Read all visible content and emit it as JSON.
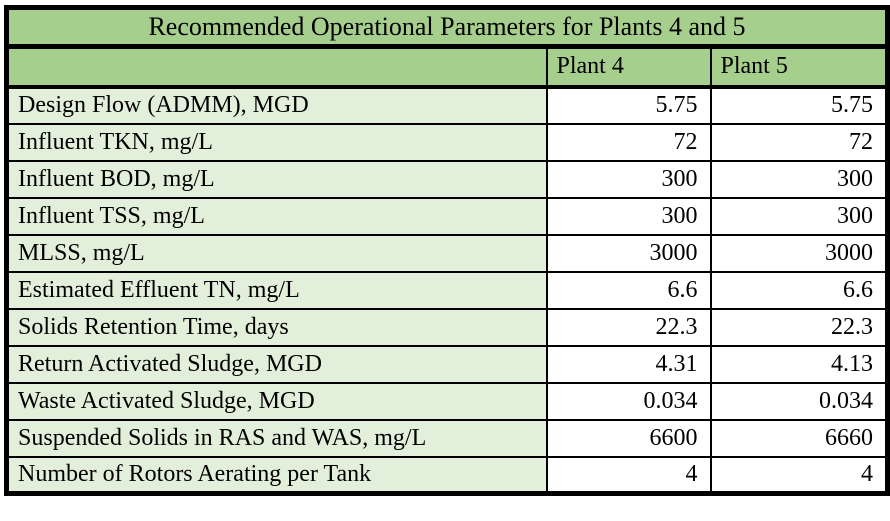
{
  "table": {
    "title": "Recommended Operational Parameters for Plants 4 and 5",
    "columns": [
      "Plant 4",
      "Plant 5"
    ],
    "rows": [
      {
        "label": "Design Flow (ADMM), MGD",
        "plant4": "5.75",
        "plant5": "5.75"
      },
      {
        "label": "Influent TKN, mg/L",
        "plant4": "72",
        "plant5": "72"
      },
      {
        "label": "Influent BOD, mg/L",
        "plant4": "300",
        "plant5": "300"
      },
      {
        "label": "Influent TSS, mg/L",
        "plant4": "300",
        "plant5": "300"
      },
      {
        "label": "MLSS, mg/L",
        "plant4": "3000",
        "plant5": "3000"
      },
      {
        "label": "Estimated Effluent TN, mg/L",
        "plant4": "6.6",
        "plant5": "6.6"
      },
      {
        "label": "Solids Retention Time, days",
        "plant4": "22.3",
        "plant5": "22.3"
      },
      {
        "label": "Return Activated Sludge, MGD",
        "plant4": "4.31",
        "plant5": "4.13"
      },
      {
        "label": "Waste Activated Sludge, MGD",
        "plant4": "0.034",
        "plant5": "0.034"
      },
      {
        "label": "Suspended Solids in RAS and WAS, mg/L",
        "plant4": "6600",
        "plant5": "6660"
      },
      {
        "label": "Number of Rotors Aerating per Tank",
        "plant4": "4",
        "plant5": "4"
      }
    ]
  },
  "colors": {
    "header_green": "#a6ce8c",
    "label_green": "#e2efda",
    "value_cell": "#ffffff",
    "border": "#000000"
  },
  "chart_data": {
    "type": "table",
    "title": "Recommended Operational Parameters for Plants 4 and 5",
    "categories": [
      "Design Flow (ADMM), MGD",
      "Influent TKN, mg/L",
      "Influent BOD, mg/L",
      "Influent TSS, mg/L",
      "MLSS, mg/L",
      "Estimated Effluent TN, mg/L",
      "Solids Retention Time, days",
      "Return Activated Sludge, MGD",
      "Waste Activated Sludge, MGD",
      "Suspended Solids in RAS and WAS, mg/L",
      "Number of Rotors Aerating per Tank"
    ],
    "series": [
      {
        "name": "Plant 4",
        "values": [
          5.75,
          72,
          300,
          300,
          3000,
          6.6,
          22.3,
          4.31,
          0.034,
          6600,
          4
        ]
      },
      {
        "name": "Plant 5",
        "values": [
          5.75,
          72,
          300,
          300,
          3000,
          6.6,
          22.3,
          4.13,
          0.034,
          6660,
          4
        ]
      }
    ]
  }
}
